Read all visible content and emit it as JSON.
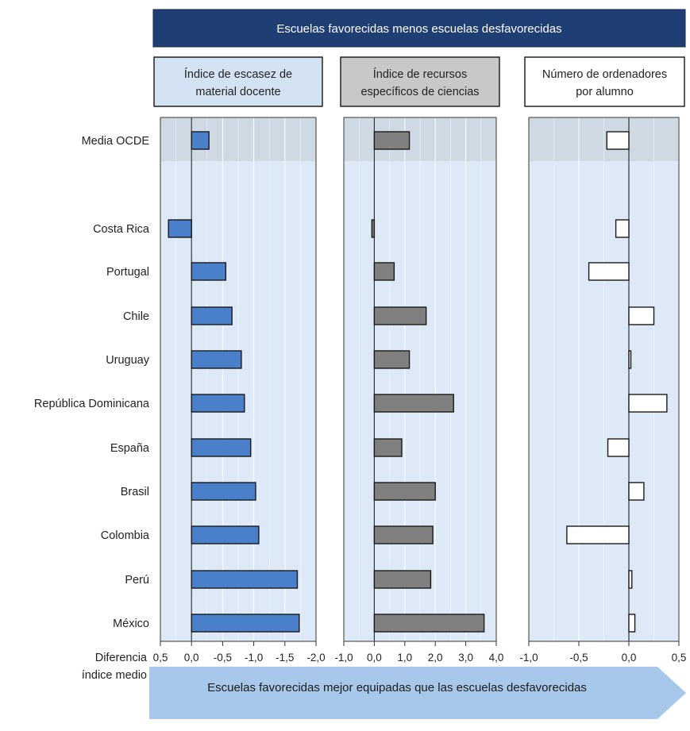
{
  "chart_data": {
    "type": "bar",
    "title": "Escuelas favorecidas menos escuelas desfavorecidas",
    "xlabel": "Diferencia índice medio",
    "footer": "Escuelas favorecidas mejor equipadas que las escuelas desfavorecidas",
    "categories": [
      "Media OCDE",
      "Costa Rica",
      "Portugal",
      "Chile",
      "Uruguay",
      "República Dominicana",
      "España",
      "Brasil",
      "Colombia",
      "Perú",
      "México"
    ],
    "series": [
      {
        "name": "Índice de escasez de material docente",
        "name_lines": [
          "Índice de escasez de",
          "material docente"
        ],
        "values": [
          -0.28,
          0.37,
          -0.55,
          -0.65,
          -0.8,
          -0.85,
          -0.95,
          -1.03,
          -1.08,
          -1.7,
          -1.73
        ],
        "xlim": [
          0.5,
          -2.0
        ],
        "ticks": [
          "0,5",
          "0,0",
          "-0,5",
          "-1,0",
          "-1,5",
          "-2,0"
        ],
        "tick_values": [
          0.5,
          0.0,
          -0.5,
          -1.0,
          -1.5,
          -2.0
        ],
        "bar_color": "#4a7fc9",
        "header_color": "#d4e3f4"
      },
      {
        "name": "Índice de recursos específicos de ciencias",
        "name_lines": [
          "Índice de recursos",
          "específicos de ciencias"
        ],
        "values": [
          1.15,
          -0.08,
          0.65,
          1.7,
          1.15,
          2.6,
          0.9,
          2.0,
          1.92,
          1.85,
          3.6
        ],
        "xlim": [
          -1.0,
          4.0
        ],
        "ticks": [
          "-1,0",
          "0,0",
          "1,0",
          "2,0",
          "3,0",
          "4,0"
        ],
        "tick_values": [
          -1.0,
          0.0,
          1.0,
          2.0,
          3.0,
          4.0
        ],
        "bar_color": "#808080",
        "header_color": "#c8c8c8"
      },
      {
        "name": "Número de ordenadores por alumno",
        "name_lines": [
          "Número de ordenadores",
          "por alumno"
        ],
        "values": [
          -0.22,
          -0.13,
          -0.4,
          0.25,
          0.02,
          0.38,
          -0.21,
          0.15,
          -0.62,
          0.03,
          0.06
        ],
        "xlim": [
          -1.0,
          0.5
        ],
        "ticks": [
          "-1,0",
          "-0,5",
          "0,0",
          "0,5"
        ],
        "tick_values": [
          -1.0,
          -0.5,
          0.0,
          0.5
        ],
        "bar_color": "#ffffff",
        "header_color": "#ffffff"
      }
    ],
    "grid": true
  },
  "colors": {
    "title_bg": "#1f3f74",
    "panel_bg": "#dde9f6",
    "highlight_bg": "#c9d3de",
    "arrow": "#a7c8ea"
  }
}
